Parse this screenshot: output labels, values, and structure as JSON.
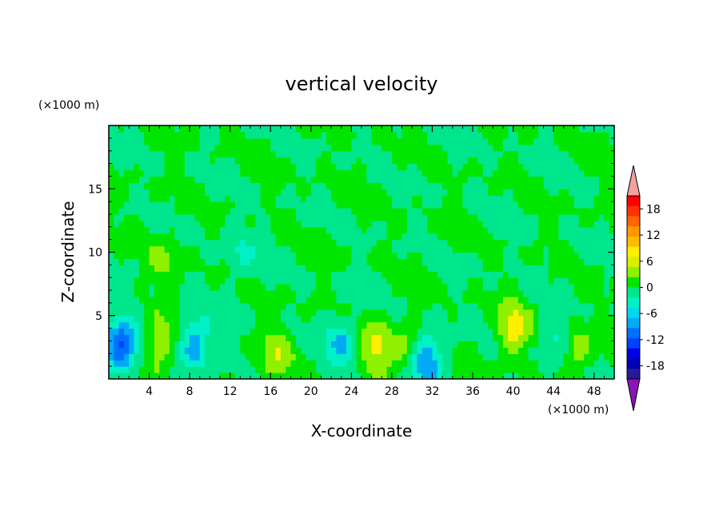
{
  "chart_data": {
    "type": "heatmap",
    "title": "vertical velocity",
    "xlabel": "X-coordinate",
    "ylabel": "Z-coordinate",
    "x_unit": "(×1000 m)",
    "y_unit": "(×1000 m)",
    "xlim": [
      0,
      50
    ],
    "ylim": [
      0,
      20
    ],
    "x_ticks": [
      4,
      8,
      12,
      16,
      20,
      24,
      28,
      32,
      36,
      40,
      44,
      48
    ],
    "y_ticks": [
      5,
      10,
      15
    ],
    "grid": false,
    "legend": "right",
    "colorbar": {
      "tick_labels": [
        18,
        12,
        6,
        0,
        -6,
        -12,
        -18
      ],
      "levels": [
        -21,
        -18,
        -15,
        -12,
        -9,
        -6,
        -3,
        0,
        3,
        6,
        9,
        12,
        15,
        18,
        21
      ],
      "extend": "both",
      "colors": [
        "#ff0000",
        "#ff3300",
        "#ff6600",
        "#ff9900",
        "#ffbb00",
        "#ffee00",
        "#d6f000",
        "#8ff000",
        "#00e600",
        "#00e68c",
        "#00f0c8",
        "#00d8f0",
        "#00aaf5",
        "#0070ff",
        "#0040ff",
        "#0000e6",
        "#0000b4",
        "#2a1a9a"
      ],
      "over_color": "#f5a0a0",
      "under_color": "#8a14b4"
    },
    "features": [
      {
        "x": 1.2,
        "z": 2.5,
        "value": -12
      },
      {
        "x": 5.0,
        "z": 2.6,
        "value": 6
      },
      {
        "x": 8.5,
        "z": 2.9,
        "value": -8
      },
      {
        "x": 16.5,
        "z": 2.0,
        "value": 5
      },
      {
        "x": 23.0,
        "z": 3.0,
        "value": -6
      },
      {
        "x": 26.5,
        "z": 2.4,
        "value": 7
      },
      {
        "x": 29.5,
        "z": 2.6,
        "value": 4
      },
      {
        "x": 31.5,
        "z": 1.5,
        "value": -9
      },
      {
        "x": 40.0,
        "z": 4.0,
        "value": 7
      },
      {
        "x": 44.5,
        "z": 3.0,
        "value": -5
      },
      {
        "x": 46.0,
        "z": 2.3,
        "value": 6
      },
      {
        "x": 5.5,
        "z": 9.5,
        "value": 3
      },
      {
        "x": 13.0,
        "z": 9.8,
        "value": -3
      }
    ]
  }
}
